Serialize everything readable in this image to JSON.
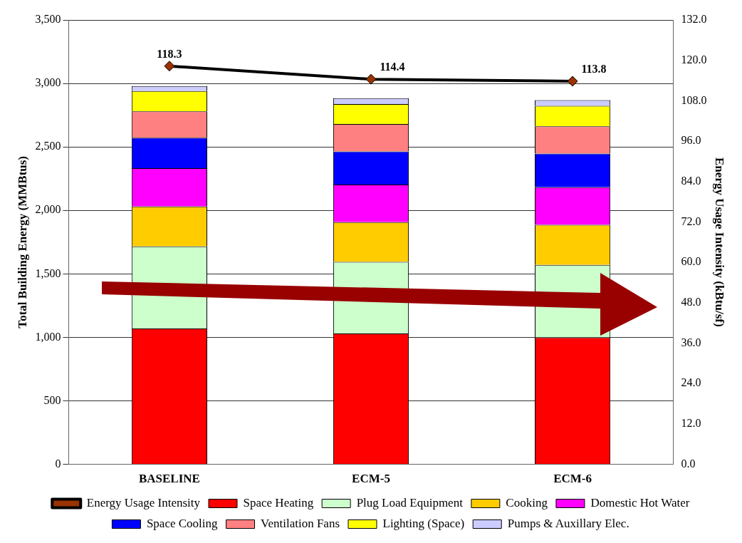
{
  "chart_data": {
    "type": "bar",
    "stacked": true,
    "categories": [
      "BASELINE",
      "ECM-5",
      "ECM-6"
    ],
    "ylabel": "Total Building Energy (MMBtus)",
    "y2label": "Energy Usage Intensity (kBtu/sf)",
    "ylim": [
      0,
      3500
    ],
    "yticks": [
      {
        "value": 0,
        "label": "0"
      },
      {
        "value": 500,
        "label": "500"
      },
      {
        "value": 1000,
        "label": "1,000"
      },
      {
        "value": 1500,
        "label": "1,500"
      },
      {
        "value": 2000,
        "label": "2,000"
      },
      {
        "value": 2500,
        "label": "2,500"
      },
      {
        "value": 3000,
        "label": "3,000"
      },
      {
        "value": 3500,
        "label": "3,500"
      }
    ],
    "y2lim": [
      0,
      132
    ],
    "y2ticks": [
      {
        "value": 0,
        "label": "0.0"
      },
      {
        "value": 12,
        "label": "12.0"
      },
      {
        "value": 24,
        "label": "24.0"
      },
      {
        "value": 36,
        "label": "36.0"
      },
      {
        "value": 48,
        "label": "48.0"
      },
      {
        "value": 60,
        "label": "60.0"
      },
      {
        "value": 72,
        "label": "72.0"
      },
      {
        "value": 84,
        "label": "84.0"
      },
      {
        "value": 96,
        "label": "96.0"
      },
      {
        "value": 108,
        "label": "108.0"
      },
      {
        "value": 120,
        "label": "120.0"
      },
      {
        "value": 132,
        "label": "132.0"
      }
    ],
    "grid": "y",
    "legend": "bottom",
    "series": [
      {
        "name": "Space Heating",
        "color": "#ff0000",
        "values": [
          1070,
          1030,
          1000
        ]
      },
      {
        "name": "Plug Load Equipment",
        "color": "#ccffcc",
        "values": [
          646,
          564,
          571
        ]
      },
      {
        "name": "Cooking",
        "color": "#ffcc00",
        "values": [
          315,
          313,
          316
        ]
      },
      {
        "name": "Domestic Hot Water",
        "color": "#ff00ff",
        "values": [
          301,
          296,
          296
        ]
      },
      {
        "name": "Space Cooling",
        "color": "#0000ff",
        "values": [
          241,
          262,
          264
        ]
      },
      {
        "name": "Ventilation Fans",
        "color": "#ff8080",
        "values": [
          207,
          216,
          216
        ]
      },
      {
        "name": "Lighting (Space)",
        "color": "#ffff00",
        "values": [
          160,
          157,
          161
        ]
      },
      {
        "name": "Pumps & Auxillary Elec.",
        "color": "#ccccff",
        "values": [
          40,
          46,
          44
        ]
      },
      {
        "name": "Energy Usage Intensity",
        "type": "line",
        "axis": "y2",
        "color": "#000000",
        "marker": "diamond",
        "values": [
          118.3,
          114.4,
          113.8
        ],
        "value_labels": [
          "118.3",
          "114.4",
          "113.8"
        ]
      }
    ]
  }
}
